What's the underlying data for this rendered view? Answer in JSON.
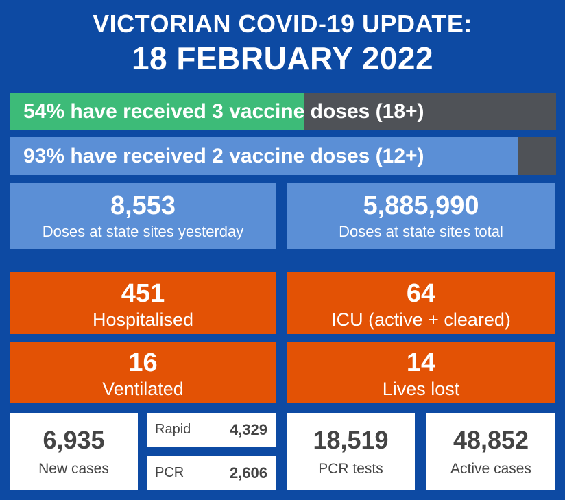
{
  "header": {
    "title_line1": "VICTORIAN COVID-19 UPDATE:",
    "title_line2": "18 FEBRUARY 2022"
  },
  "vaccination": {
    "three_dose": {
      "text": "54% have received 3 vaccine doses (18+)",
      "percent": 54,
      "color": "#3dbb78"
    },
    "two_dose": {
      "text": "93% have received 2 vaccine doses (12+)",
      "percent": 93,
      "color": "#5b8fd6"
    }
  },
  "doses": {
    "yesterday": {
      "value": "8,553",
      "label": "Doses at state sites yesterday"
    },
    "total": {
      "value": "5,885,990",
      "label": "Doses at state sites total"
    }
  },
  "hospital": {
    "hospitalised": {
      "value": "451",
      "label": "Hospitalised"
    },
    "icu": {
      "value": "64",
      "label": "ICU (active + cleared)"
    },
    "ventilated": {
      "value": "16",
      "label": "Ventilated"
    },
    "lives_lost": {
      "value": "14",
      "label": "Lives lost"
    }
  },
  "cases": {
    "new_cases": {
      "value": "6,935",
      "label": "New cases"
    },
    "rapid": {
      "label": "Rapid",
      "value": "4,329"
    },
    "pcr": {
      "label": "PCR",
      "value": "2,606"
    },
    "pcr_tests": {
      "value": "18,519",
      "label": "PCR tests"
    },
    "active_cases": {
      "value": "48,852",
      "label": "Active cases"
    }
  },
  "colors": {
    "background": "#0d4aa3",
    "orange": "#e35205",
    "light_blue": "#5b8fd6",
    "green": "#3dbb78",
    "grey": "#4f5257"
  }
}
